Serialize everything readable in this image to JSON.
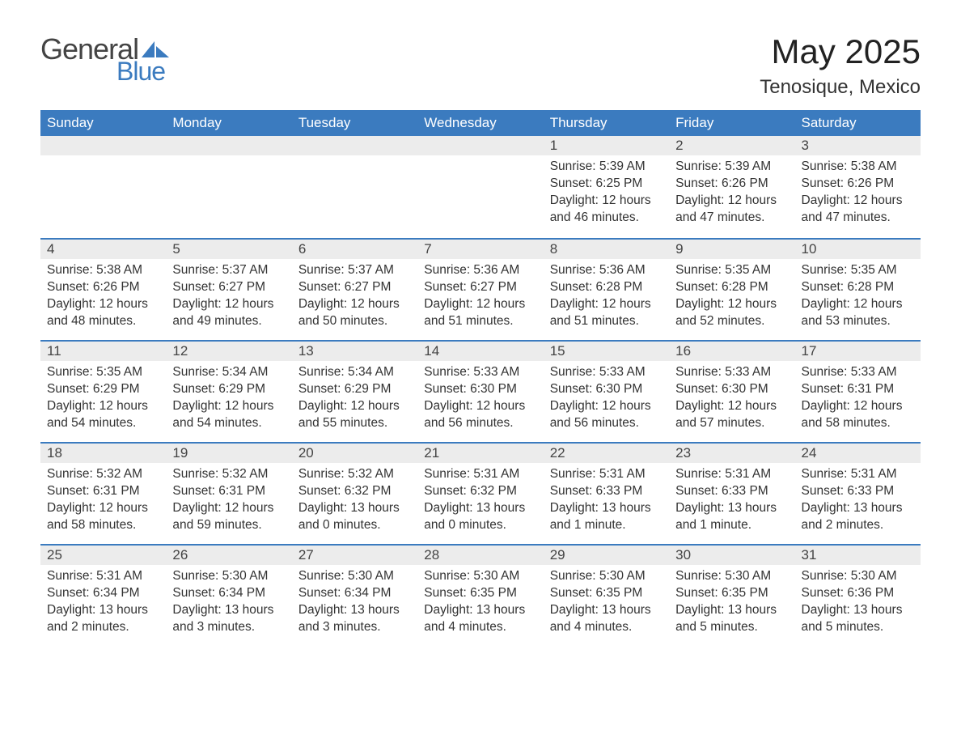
{
  "logo": {
    "general": "General",
    "blue": "Blue",
    "icon_color": "#3b7bbf"
  },
  "title": "May 2025",
  "location": "Tenosique, Mexico",
  "colors": {
    "header_bg": "#3b7bbf",
    "header_text": "#ffffff",
    "daynum_bg": "#ececec",
    "border": "#3b7bbf",
    "body_text": "#333333",
    "page_bg": "#ffffff"
  },
  "typography": {
    "title_fontsize": 42,
    "location_fontsize": 24,
    "dayheader_fontsize": 17,
    "body_fontsize": 15.5
  },
  "day_headers": [
    "Sunday",
    "Monday",
    "Tuesday",
    "Wednesday",
    "Thursday",
    "Friday",
    "Saturday"
  ],
  "weeks": [
    [
      {
        "blank": true
      },
      {
        "blank": true
      },
      {
        "blank": true
      },
      {
        "blank": true
      },
      {
        "num": "1",
        "sunrise": "Sunrise: 5:39 AM",
        "sunset": "Sunset: 6:25 PM",
        "daylight": "Daylight: 12 hours and 46 minutes."
      },
      {
        "num": "2",
        "sunrise": "Sunrise: 5:39 AM",
        "sunset": "Sunset: 6:26 PM",
        "daylight": "Daylight: 12 hours and 47 minutes."
      },
      {
        "num": "3",
        "sunrise": "Sunrise: 5:38 AM",
        "sunset": "Sunset: 6:26 PM",
        "daylight": "Daylight: 12 hours and 47 minutes."
      }
    ],
    [
      {
        "num": "4",
        "sunrise": "Sunrise: 5:38 AM",
        "sunset": "Sunset: 6:26 PM",
        "daylight": "Daylight: 12 hours and 48 minutes."
      },
      {
        "num": "5",
        "sunrise": "Sunrise: 5:37 AM",
        "sunset": "Sunset: 6:27 PM",
        "daylight": "Daylight: 12 hours and 49 minutes."
      },
      {
        "num": "6",
        "sunrise": "Sunrise: 5:37 AM",
        "sunset": "Sunset: 6:27 PM",
        "daylight": "Daylight: 12 hours and 50 minutes."
      },
      {
        "num": "7",
        "sunrise": "Sunrise: 5:36 AM",
        "sunset": "Sunset: 6:27 PM",
        "daylight": "Daylight: 12 hours and 51 minutes."
      },
      {
        "num": "8",
        "sunrise": "Sunrise: 5:36 AM",
        "sunset": "Sunset: 6:28 PM",
        "daylight": "Daylight: 12 hours and 51 minutes."
      },
      {
        "num": "9",
        "sunrise": "Sunrise: 5:35 AM",
        "sunset": "Sunset: 6:28 PM",
        "daylight": "Daylight: 12 hours and 52 minutes."
      },
      {
        "num": "10",
        "sunrise": "Sunrise: 5:35 AM",
        "sunset": "Sunset: 6:28 PM",
        "daylight": "Daylight: 12 hours and 53 minutes."
      }
    ],
    [
      {
        "num": "11",
        "sunrise": "Sunrise: 5:35 AM",
        "sunset": "Sunset: 6:29 PM",
        "daylight": "Daylight: 12 hours and 54 minutes."
      },
      {
        "num": "12",
        "sunrise": "Sunrise: 5:34 AM",
        "sunset": "Sunset: 6:29 PM",
        "daylight": "Daylight: 12 hours and 54 minutes."
      },
      {
        "num": "13",
        "sunrise": "Sunrise: 5:34 AM",
        "sunset": "Sunset: 6:29 PM",
        "daylight": "Daylight: 12 hours and 55 minutes."
      },
      {
        "num": "14",
        "sunrise": "Sunrise: 5:33 AM",
        "sunset": "Sunset: 6:30 PM",
        "daylight": "Daylight: 12 hours and 56 minutes."
      },
      {
        "num": "15",
        "sunrise": "Sunrise: 5:33 AM",
        "sunset": "Sunset: 6:30 PM",
        "daylight": "Daylight: 12 hours and 56 minutes."
      },
      {
        "num": "16",
        "sunrise": "Sunrise: 5:33 AM",
        "sunset": "Sunset: 6:30 PM",
        "daylight": "Daylight: 12 hours and 57 minutes."
      },
      {
        "num": "17",
        "sunrise": "Sunrise: 5:33 AM",
        "sunset": "Sunset: 6:31 PM",
        "daylight": "Daylight: 12 hours and 58 minutes."
      }
    ],
    [
      {
        "num": "18",
        "sunrise": "Sunrise: 5:32 AM",
        "sunset": "Sunset: 6:31 PM",
        "daylight": "Daylight: 12 hours and 58 minutes."
      },
      {
        "num": "19",
        "sunrise": "Sunrise: 5:32 AM",
        "sunset": "Sunset: 6:31 PM",
        "daylight": "Daylight: 12 hours and 59 minutes."
      },
      {
        "num": "20",
        "sunrise": "Sunrise: 5:32 AM",
        "sunset": "Sunset: 6:32 PM",
        "daylight": "Daylight: 13 hours and 0 minutes."
      },
      {
        "num": "21",
        "sunrise": "Sunrise: 5:31 AM",
        "sunset": "Sunset: 6:32 PM",
        "daylight": "Daylight: 13 hours and 0 minutes."
      },
      {
        "num": "22",
        "sunrise": "Sunrise: 5:31 AM",
        "sunset": "Sunset: 6:33 PM",
        "daylight": "Daylight: 13 hours and 1 minute."
      },
      {
        "num": "23",
        "sunrise": "Sunrise: 5:31 AM",
        "sunset": "Sunset: 6:33 PM",
        "daylight": "Daylight: 13 hours and 1 minute."
      },
      {
        "num": "24",
        "sunrise": "Sunrise: 5:31 AM",
        "sunset": "Sunset: 6:33 PM",
        "daylight": "Daylight: 13 hours and 2 minutes."
      }
    ],
    [
      {
        "num": "25",
        "sunrise": "Sunrise: 5:31 AM",
        "sunset": "Sunset: 6:34 PM",
        "daylight": "Daylight: 13 hours and 2 minutes."
      },
      {
        "num": "26",
        "sunrise": "Sunrise: 5:30 AM",
        "sunset": "Sunset: 6:34 PM",
        "daylight": "Daylight: 13 hours and 3 minutes."
      },
      {
        "num": "27",
        "sunrise": "Sunrise: 5:30 AM",
        "sunset": "Sunset: 6:34 PM",
        "daylight": "Daylight: 13 hours and 3 minutes."
      },
      {
        "num": "28",
        "sunrise": "Sunrise: 5:30 AM",
        "sunset": "Sunset: 6:35 PM",
        "daylight": "Daylight: 13 hours and 4 minutes."
      },
      {
        "num": "29",
        "sunrise": "Sunrise: 5:30 AM",
        "sunset": "Sunset: 6:35 PM",
        "daylight": "Daylight: 13 hours and 4 minutes."
      },
      {
        "num": "30",
        "sunrise": "Sunrise: 5:30 AM",
        "sunset": "Sunset: 6:35 PM",
        "daylight": "Daylight: 13 hours and 5 minutes."
      },
      {
        "num": "31",
        "sunrise": "Sunrise: 5:30 AM",
        "sunset": "Sunset: 6:36 PM",
        "daylight": "Daylight: 13 hours and 5 minutes."
      }
    ]
  ]
}
